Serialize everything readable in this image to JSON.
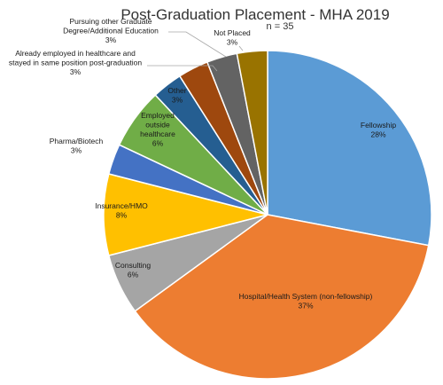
{
  "chart_data": {
    "type": "pie",
    "title": "Post-Graduation Placement - MHA 2019",
    "subtitle": "n = 35",
    "start_angle_deg": 0,
    "direction": "clockwise",
    "slices": [
      {
        "name": "Fellowship",
        "value": 28,
        "label": "28%",
        "color": "#5B9BD5"
      },
      {
        "name": "Hospital/Health System (non-fellowship)",
        "value": 37,
        "label": "37%",
        "color": "#ED7D31"
      },
      {
        "name": "Consulting",
        "value": 6,
        "label": "6%",
        "color": "#A5A5A5"
      },
      {
        "name": "Insurance/HMO",
        "value": 8,
        "label": "8%",
        "color": "#FFC000"
      },
      {
        "name": "Pharma/Biotech",
        "value": 3,
        "label": "3%",
        "color": "#4472C4"
      },
      {
        "name": "Employed outside healthcare",
        "value": 6,
        "label": "6%",
        "color": "#70AD47"
      },
      {
        "name": "Other",
        "value": 3,
        "label": "3%",
        "color": "#255E91"
      },
      {
        "name": "Already employed in healthcare and stayed in same position post-graduation",
        "value": 3,
        "label": "3%",
        "color": "#9E480E"
      },
      {
        "name": "Pursuing other Graduate Degree/Additional Education",
        "value": 3,
        "label": "3%",
        "color": "#636363"
      },
      {
        "name": "Not Placed",
        "value": 3,
        "label": "3%",
        "color": "#997300"
      }
    ]
  }
}
